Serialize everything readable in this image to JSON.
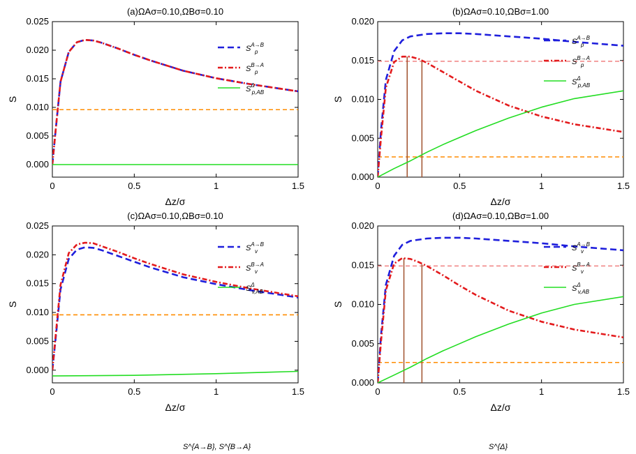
{
  "chart_data": [
    {
      "type": "line",
      "title": "(a)ΩAσ=0.10,ΩBσ=0.10",
      "xlabel": "Δz/σ",
      "ylabel": "S",
      "xlim": [
        0,
        1.5
      ],
      "ylim": [
        -0.0022,
        0.025
      ],
      "xticks": [
        "0",
        "0.5",
        "1",
        "1.5"
      ],
      "yticks": [
        "0.000",
        "0.005",
        "0.010",
        "0.015",
        "0.020",
        "0.025"
      ],
      "series": [
        {
          "name": "S_p^{A→B}",
          "color": "#1f1fdc",
          "style": "dash",
          "x": [
            0,
            0.02,
            0.05,
            0.1,
            0.15,
            0.2,
            0.25,
            0.3,
            0.4,
            0.5,
            0.6,
            0.8,
            1.0,
            1.2,
            1.5
          ],
          "y": [
            0,
            0.006,
            0.0145,
            0.0197,
            0.0214,
            0.0218,
            0.0217,
            0.0213,
            0.0203,
            0.0192,
            0.0182,
            0.0164,
            0.0151,
            0.0141,
            0.0128
          ]
        },
        {
          "name": "S_p^{B→A}",
          "color": "#e31a1c",
          "style": "dashdot",
          "x": [
            0,
            0.02,
            0.05,
            0.1,
            0.15,
            0.2,
            0.25,
            0.3,
            0.4,
            0.5,
            0.6,
            0.8,
            1.0,
            1.2,
            1.5
          ],
          "y": [
            0,
            0.006,
            0.0145,
            0.0197,
            0.0214,
            0.0218,
            0.0217,
            0.0213,
            0.0203,
            0.0192,
            0.0182,
            0.0164,
            0.0151,
            0.0141,
            0.0128
          ]
        },
        {
          "name": "S_{p,AB}^{Δ}",
          "color": "#22dd22",
          "style": "solid",
          "x": [
            0,
            1.5
          ],
          "y": [
            0,
            0
          ]
        }
      ],
      "hlines": [
        {
          "y": 0.0096,
          "color": "#ff8c00",
          "style": "dash"
        }
      ],
      "vlines": []
    },
    {
      "type": "line",
      "title": "(b)ΩAσ=0.10,ΩBσ=1.00",
      "xlabel": "Δz/σ",
      "ylabel": "S",
      "xlim": [
        0,
        1.5
      ],
      "ylim": [
        0,
        0.02
      ],
      "xticks": [
        "0",
        "0.5",
        "1",
        "1.5"
      ],
      "yticks": [
        "0.000",
        "0.005",
        "0.010",
        "0.015",
        "0.020"
      ],
      "series": [
        {
          "name": "S_p^{A→B}",
          "color": "#1f1fdc",
          "style": "dash",
          "x": [
            0,
            0.02,
            0.05,
            0.1,
            0.15,
            0.2,
            0.3,
            0.4,
            0.5,
            0.6,
            0.8,
            1.0,
            1.2,
            1.5
          ],
          "y": [
            0,
            0.006,
            0.0125,
            0.0162,
            0.0176,
            0.0181,
            0.0184,
            0.0185,
            0.0185,
            0.0184,
            0.0181,
            0.0178,
            0.0174,
            0.0169
          ]
        },
        {
          "name": "S_p^{B→A}",
          "color": "#e31a1c",
          "style": "dashdot",
          "x": [
            0,
            0.02,
            0.05,
            0.1,
            0.15,
            0.2,
            0.25,
            0.3,
            0.4,
            0.5,
            0.6,
            0.8,
            1.0,
            1.2,
            1.5
          ],
          "y": [
            0,
            0.005,
            0.0115,
            0.0148,
            0.0155,
            0.0155,
            0.0152,
            0.0147,
            0.0135,
            0.0123,
            0.0111,
            0.0092,
            0.0078,
            0.0068,
            0.0058
          ]
        },
        {
          "name": "S_{p,AB}^{Δ}",
          "color": "#22dd22",
          "style": "solid",
          "x": [
            0,
            0.1,
            0.2,
            0.3,
            0.4,
            0.5,
            0.6,
            0.8,
            1.0,
            1.2,
            1.5
          ],
          "y": [
            0,
            0.0011,
            0.0021,
            0.0032,
            0.0042,
            0.0051,
            0.006,
            0.0076,
            0.009,
            0.0101,
            0.0111
          ]
        }
      ],
      "hlines": [
        {
          "y": 0.0149,
          "color": "#f08080",
          "style": "dash"
        },
        {
          "y": 0.0026,
          "color": "#ff8c00",
          "style": "dash"
        }
      ],
      "vlines": [
        {
          "x": 0.18,
          "y0": 0,
          "y1": 0.0155,
          "color": "#a0522d"
        },
        {
          "x": 0.27,
          "y0": 0,
          "y1": 0.0151,
          "color": "#a0522d"
        }
      ]
    },
    {
      "type": "line",
      "title": "(c)ΩAσ=0.10,ΩBσ=0.10",
      "xlabel": "Δz/σ",
      "ylabel": "S",
      "xlim": [
        0,
        1.5
      ],
      "ylim": [
        -0.0022,
        0.025
      ],
      "xticks": [
        "0",
        "0.5",
        "1",
        "1.5"
      ],
      "yticks": [
        "0.000",
        "0.005",
        "0.010",
        "0.015",
        "0.020",
        "0.025"
      ],
      "series": [
        {
          "name": "S_v^{A→B}",
          "color": "#1f1fdc",
          "style": "dash",
          "x": [
            0,
            0.02,
            0.05,
            0.1,
            0.15,
            0.2,
            0.25,
            0.3,
            0.4,
            0.5,
            0.6,
            0.8,
            1.0,
            1.2,
            1.5
          ],
          "y": [
            0,
            0.0055,
            0.014,
            0.0193,
            0.0209,
            0.0213,
            0.0212,
            0.0208,
            0.0198,
            0.0188,
            0.0178,
            0.0161,
            0.0149,
            0.0139,
            0.0126
          ]
        },
        {
          "name": "S_v^{B→A}",
          "color": "#e31a1c",
          "style": "dashdot",
          "x": [
            0,
            0.02,
            0.05,
            0.1,
            0.15,
            0.2,
            0.25,
            0.3,
            0.4,
            0.5,
            0.6,
            0.8,
            1.0,
            1.2,
            1.5
          ],
          "y": [
            0,
            0.006,
            0.0148,
            0.0203,
            0.0218,
            0.0221,
            0.022,
            0.0215,
            0.0205,
            0.0194,
            0.0184,
            0.0166,
            0.0153,
            0.0142,
            0.0128
          ]
        },
        {
          "name": "S_{v,AB}^{Δ}",
          "color": "#22dd22",
          "style": "solid",
          "x": [
            0,
            0.5,
            1.0,
            1.5
          ],
          "y": [
            -0.001,
            -0.0009,
            -0.0006,
            -0.0002
          ]
        }
      ],
      "hlines": [
        {
          "y": 0.0096,
          "color": "#ff8c00",
          "style": "dash"
        }
      ],
      "vlines": []
    },
    {
      "type": "line",
      "title": "(d)ΩAσ=0.10,ΩBσ=1.00",
      "xlabel": "Δz/σ",
      "ylabel": "S",
      "xlim": [
        0,
        1.5
      ],
      "ylim": [
        0,
        0.02
      ],
      "xticks": [
        "0",
        "0.5",
        "1",
        "1.5"
      ],
      "yticks": [
        "0.000",
        "0.005",
        "0.010",
        "0.015",
        "0.020"
      ],
      "series": [
        {
          "name": "S_v^{A→B}",
          "color": "#1f1fdc",
          "style": "dash",
          "x": [
            0,
            0.02,
            0.05,
            0.1,
            0.15,
            0.2,
            0.3,
            0.4,
            0.5,
            0.6,
            0.8,
            1.0,
            1.2,
            1.5
          ],
          "y": [
            0,
            0.006,
            0.0125,
            0.0162,
            0.0176,
            0.0181,
            0.0184,
            0.0185,
            0.0185,
            0.0184,
            0.0181,
            0.0178,
            0.0174,
            0.0169
          ]
        },
        {
          "name": "S_v^{B→A}",
          "color": "#e31a1c",
          "style": "dashdot",
          "x": [
            0,
            0.02,
            0.05,
            0.1,
            0.15,
            0.2,
            0.25,
            0.3,
            0.4,
            0.5,
            0.6,
            0.8,
            1.0,
            1.2,
            1.5
          ],
          "y": [
            0,
            0.0052,
            0.0118,
            0.0152,
            0.0159,
            0.0158,
            0.0154,
            0.0149,
            0.0137,
            0.0124,
            0.0112,
            0.0092,
            0.0078,
            0.0068,
            0.0058
          ]
        },
        {
          "name": "S_{v,AB}^{Δ}",
          "color": "#22dd22",
          "style": "solid",
          "x": [
            0,
            0.1,
            0.2,
            0.3,
            0.4,
            0.5,
            0.6,
            0.8,
            1.0,
            1.2,
            1.5
          ],
          "y": [
            0,
            0.001,
            0.002,
            0.0031,
            0.0041,
            0.005,
            0.0059,
            0.0075,
            0.0089,
            0.01,
            0.011
          ]
        }
      ],
      "hlines": [
        {
          "y": 0.0149,
          "color": "#f08080",
          "style": "dash"
        },
        {
          "y": 0.0026,
          "color": "#ff8c00",
          "style": "dash"
        }
      ],
      "vlines": [
        {
          "x": 0.16,
          "y0": 0,
          "y1": 0.0159,
          "color": "#a0522d"
        },
        {
          "x": 0.27,
          "y0": 0,
          "y1": 0.0151,
          "color": "#a0522d"
        }
      ]
    }
  ],
  "caption_fragments": {
    "left": "S^{A→B}, S^{B→A}",
    "right": "S^{Δ}"
  }
}
